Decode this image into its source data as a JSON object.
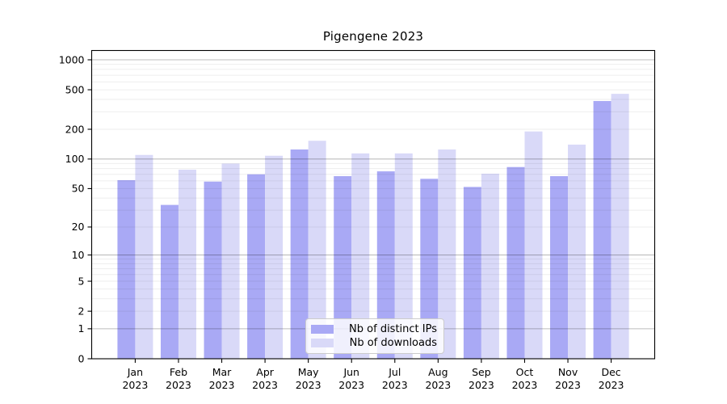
{
  "chart_data": {
    "type": "bar",
    "title": "Pigengene 2023",
    "categories": [
      "Jan 2023",
      "Feb 2023",
      "Mar 2023",
      "Apr 2023",
      "May 2023",
      "Jun 2023",
      "Jul 2023",
      "Aug 2023",
      "Sep 2023",
      "Oct 2023",
      "Nov 2023",
      "Dec 2023"
    ],
    "series": [
      {
        "name": "Nb of distinct IPs",
        "color": "#a9a9f5",
        "values": [
          61,
          34,
          59,
          70,
          125,
          67,
          75,
          63,
          52,
          83,
          67,
          385
        ]
      },
      {
        "name": "Nb of downloads",
        "color": "#d9d9f8",
        "values": [
          110,
          78,
          90,
          108,
          153,
          114,
          114,
          125,
          71,
          190,
          140,
          455
        ]
      }
    ],
    "xlabel": "",
    "ylabel": "",
    "yscale": "log1p",
    "ylim": [
      0,
      1100
    ],
    "y_ticks": [
      0,
      1,
      2,
      5,
      10,
      20,
      50,
      100,
      200,
      500,
      1000
    ],
    "grid": "horizontal major+minor (log decades)",
    "legend_position": "lower center",
    "colors": {
      "background": "#ffffff",
      "axis": "#000000",
      "major_grid": "#c9c9c9",
      "minor_grid": "#efefef",
      "text": "#000000"
    }
  }
}
